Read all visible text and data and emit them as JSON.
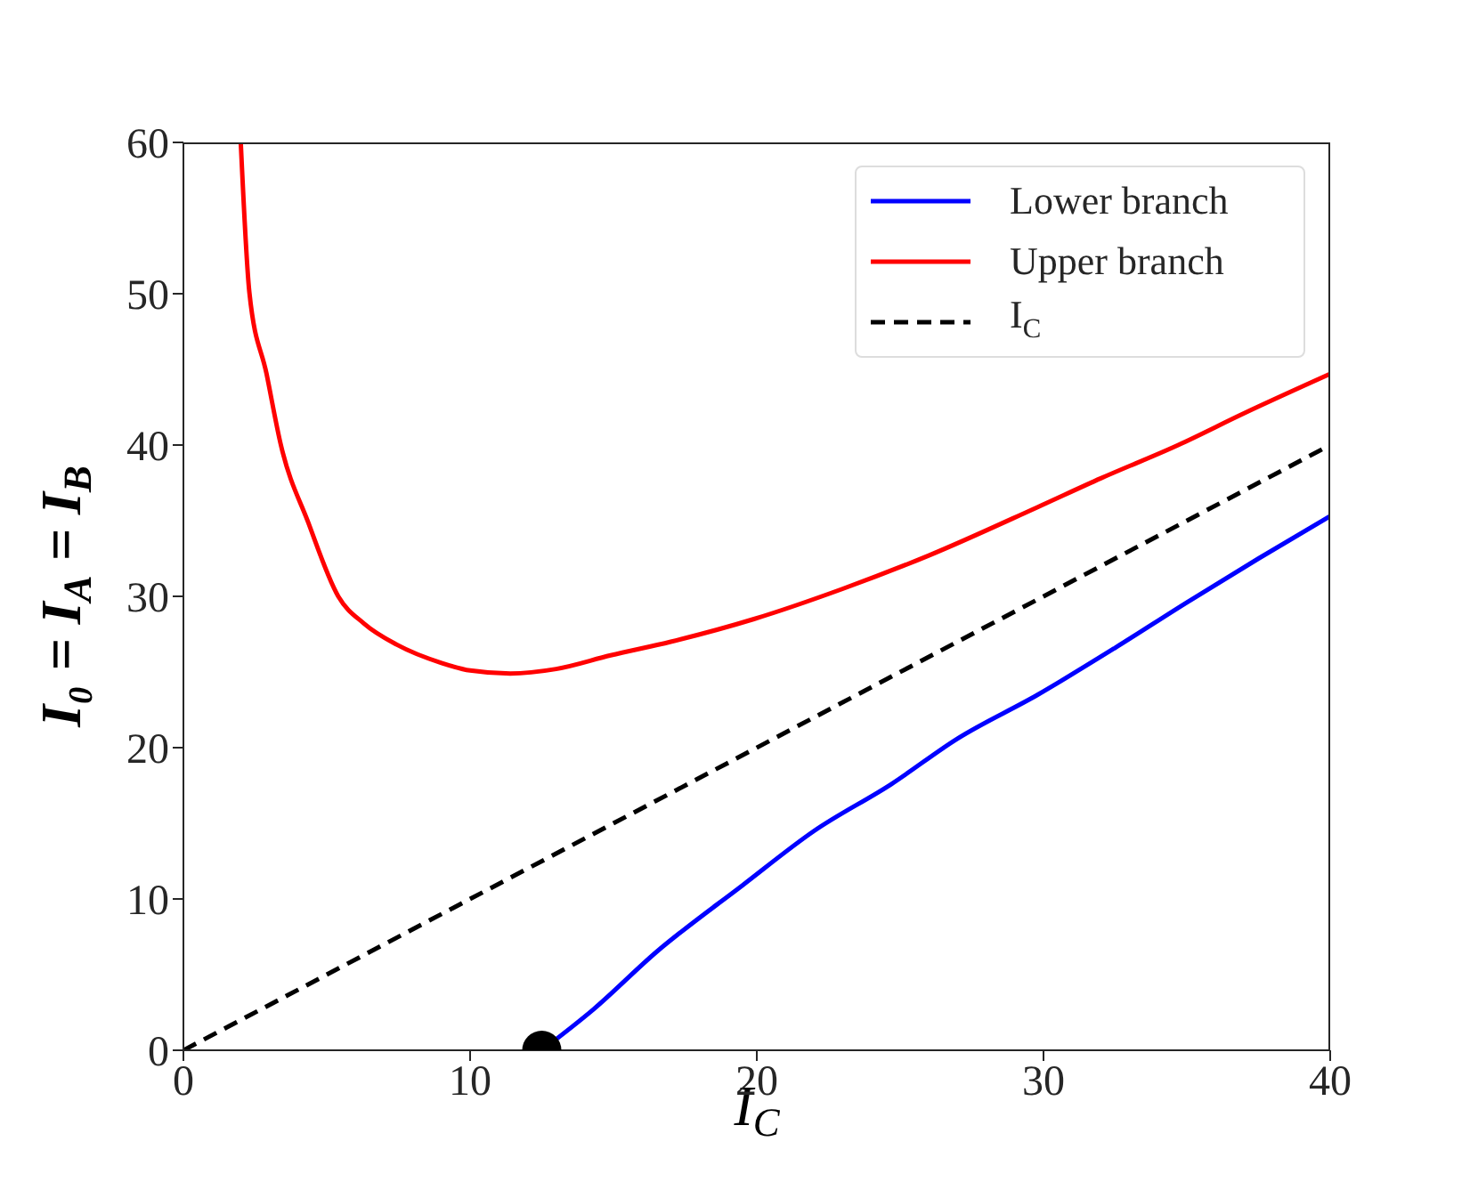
{
  "chart_data": {
    "type": "line",
    "xlabel": "I$_{C}$",
    "ylabel": "I₀ = I$_{A}$ = I$_{B}$",
    "xlim": [
      0,
      40
    ],
    "ylim": [
      0,
      60
    ],
    "xticks": [
      0,
      10,
      20,
      30,
      40
    ],
    "yticks": [
      0,
      10,
      20,
      30,
      40,
      50,
      60
    ],
    "legend": "top right",
    "series": [
      {
        "name": "Lower branch",
        "color": "#0000ff",
        "line_style": "solid",
        "marker": "none",
        "x": [
          12.5,
          14.3,
          16.5,
          19.5,
          22,
          24.7,
          27,
          29.8,
          32.5,
          35,
          37.5,
          40
        ],
        "values": [
          0,
          2.7,
          6.5,
          10.9,
          14.5,
          17.6,
          20.6,
          23.5,
          26.6,
          29.6,
          32.5,
          35.3
        ]
      },
      {
        "name": "Upper branch",
        "color": "#ff0000",
        "line_style": "solid",
        "marker": "none",
        "x": [
          2,
          2.3,
          2.9,
          3.4,
          4.35,
          5.4,
          6.3,
          7.45,
          9,
          10,
          11.4,
          13,
          14.9,
          17,
          19.9,
          23,
          26,
          29.8,
          32,
          34.7,
          37,
          40
        ],
        "values": [
          60,
          50.1,
          44.7,
          40,
          34.9,
          30,
          28.2,
          26.8,
          25.6,
          25.1,
          24.9,
          25.2,
          26.1,
          27,
          28.5,
          30.5,
          32.7,
          35.9,
          37.8,
          40,
          42.1,
          44.7
        ]
      },
      {
        "name": "I$_{C}$",
        "color": "#000000",
        "line_style": "dashed",
        "marker": "none",
        "x": [
          0,
          40
        ],
        "values": [
          0,
          40
        ]
      },
      {
        "type": "scatter",
        "color": "#000000",
        "marker": "circle",
        "x": [
          12.5
        ],
        "values": [
          0
        ]
      }
    ]
  }
}
